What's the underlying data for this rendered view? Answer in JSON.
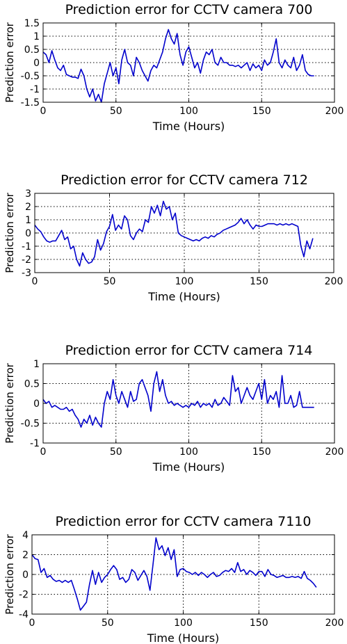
{
  "chart_data": [
    {
      "type": "line",
      "title": "Prediction error for CCTV camera 700",
      "xlabel": "Time (Hours)",
      "ylabel": "Prediction error",
      "xlim": [
        0,
        200
      ],
      "ylim": [
        -1.5,
        1.5
      ],
      "xticks": [
        0,
        50,
        100,
        150,
        200
      ],
      "yticks": [
        -1.5,
        -1,
        -0.5,
        0,
        0.5,
        1,
        1.5
      ],
      "xtick_labels": [
        "0",
        "50",
        "100",
        "150",
        "200"
      ],
      "ytick_labels": [
        "-1.5",
        "-1",
        "-0.5",
        "0",
        "0.5",
        "1",
        "1.5"
      ],
      "grid": true,
      "color": "#0000cc",
      "series": [
        {
          "x": [
            0,
            2,
            4,
            6,
            8,
            10,
            12,
            14,
            16,
            18,
            20,
            22,
            24,
            26,
            28,
            30,
            32,
            34,
            36,
            38,
            40,
            42,
            44,
            46,
            48,
            50,
            52,
            54,
            56,
            58,
            60,
            62,
            64,
            66,
            68,
            70,
            72,
            74,
            76,
            78,
            80,
            82,
            84,
            86,
            88,
            90,
            92,
            94,
            96,
            98,
            100,
            102,
            104,
            106,
            108,
            110,
            112,
            114,
            116,
            118,
            120,
            122,
            124,
            126,
            128,
            130,
            132,
            134,
            136,
            138,
            140,
            142,
            144,
            146,
            148,
            150,
            152,
            154,
            156,
            158,
            160,
            162,
            164,
            166,
            168,
            170,
            172,
            174,
            176,
            178,
            180,
            182,
            184,
            186
          ],
          "y": [
            0.4,
            0.3,
            0.0,
            0.45,
            0.1,
            -0.2,
            -0.3,
            -0.1,
            -0.45,
            -0.5,
            -0.55,
            -0.55,
            -0.6,
            -0.25,
            -0.5,
            -1.0,
            -1.3,
            -1.0,
            -1.45,
            -1.2,
            -1.5,
            -0.8,
            -0.4,
            0.0,
            -0.5,
            -0.2,
            -0.8,
            0.1,
            0.5,
            0.0,
            -0.1,
            -0.5,
            0.2,
            0.0,
            -0.3,
            -0.5,
            -0.7,
            -0.3,
            -0.1,
            -0.2,
            0.1,
            0.4,
            0.9,
            1.25,
            0.9,
            0.7,
            1.1,
            0.3,
            -0.1,
            0.4,
            0.6,
            0.2,
            -0.2,
            0.0,
            -0.4,
            0.1,
            0.4,
            0.3,
            0.5,
            0.0,
            -0.1,
            0.2,
            0.0,
            0.0,
            -0.1,
            -0.1,
            -0.15,
            -0.1,
            -0.2,
            -0.1,
            0.0,
            -0.3,
            -0.05,
            -0.2,
            -0.1,
            -0.3,
            0.1,
            -0.1,
            0.0,
            0.4,
            0.9,
            0.0,
            -0.2,
            0.1,
            -0.1,
            -0.2,
            0.2,
            -0.3,
            -0.1,
            0.3,
            -0.3,
            -0.45,
            -0.5,
            -0.5
          ]
        }
      ]
    },
    {
      "type": "line",
      "title": "Prediction error for CCTV camera 712",
      "xlabel": "Time (Hours)",
      "ylabel": "Prediction error",
      "xlim": [
        0,
        200
      ],
      "ylim": [
        -3,
        3
      ],
      "xticks": [
        0,
        50,
        100,
        150,
        200
      ],
      "yticks": [
        -3,
        -2,
        -1,
        0,
        1,
        2,
        3
      ],
      "xtick_labels": [
        "0",
        "50",
        "100",
        "150",
        "200"
      ],
      "ytick_labels": [
        "-3",
        "-2",
        "-1",
        "0",
        "1",
        "2",
        "3"
      ],
      "grid": true,
      "color": "#0000cc",
      "series": [
        {
          "x": [
            0,
            2,
            4,
            6,
            8,
            10,
            12,
            14,
            16,
            18,
            20,
            22,
            24,
            26,
            28,
            30,
            32,
            34,
            36,
            38,
            40,
            42,
            44,
            46,
            48,
            50,
            52,
            54,
            56,
            58,
            60,
            62,
            64,
            66,
            68,
            70,
            72,
            74,
            76,
            78,
            80,
            82,
            84,
            86,
            88,
            90,
            92,
            94,
            96,
            98,
            100,
            102,
            104,
            106,
            108,
            110,
            112,
            114,
            116,
            118,
            120,
            122,
            124,
            126,
            128,
            130,
            132,
            134,
            136,
            138,
            140,
            142,
            144,
            146,
            148,
            150,
            152,
            154,
            156,
            158,
            160,
            162,
            164,
            166,
            168,
            170,
            172,
            174,
            176,
            178,
            180,
            182,
            184,
            186
          ],
          "y": [
            0.6,
            0.3,
            0.1,
            -0.3,
            -0.6,
            -0.7,
            -0.6,
            -0.6,
            -0.2,
            0.2,
            -0.5,
            -0.3,
            -1.2,
            -1.0,
            -2.0,
            -2.5,
            -1.5,
            -2.0,
            -2.3,
            -2.2,
            -1.8,
            -0.5,
            -1.3,
            -0.8,
            0.1,
            0.5,
            1.4,
            0.2,
            0.6,
            0.3,
            1.3,
            1.0,
            -0.2,
            -0.5,
            0.0,
            0.3,
            0.1,
            1.0,
            0.8,
            2.0,
            1.5,
            2.1,
            1.3,
            2.4,
            1.8,
            2.0,
            1.0,
            1.5,
            0.0,
            -0.2,
            -0.3,
            -0.4,
            -0.5,
            -0.6,
            -0.5,
            -0.6,
            -0.4,
            -0.3,
            -0.4,
            -0.2,
            -0.3,
            -0.1,
            0.0,
            0.2,
            0.3,
            0.4,
            0.5,
            0.6,
            0.8,
            1.1,
            0.7,
            1.0,
            0.6,
            0.3,
            0.6,
            0.5,
            0.5,
            0.6,
            0.7,
            0.7,
            0.7,
            0.6,
            0.7,
            0.6,
            0.7,
            0.6,
            0.7,
            0.6,
            0.5,
            -1.0,
            -1.8,
            -0.6,
            -1.2,
            -0.4
          ]
        }
      ]
    },
    {
      "type": "line",
      "title": "Prediction error for CCTV camera 714",
      "xlabel": "Time (Hours)",
      "ylabel": "Prediction error",
      "xlim": [
        0,
        200
      ],
      "ylim": [
        -1,
        1
      ],
      "xticks": [
        0,
        50,
        100,
        150,
        200
      ],
      "yticks": [
        -1,
        -0.5,
        0,
        0.5,
        1
      ],
      "xtick_labels": [
        "0",
        "50",
        "100",
        "150",
        "200"
      ],
      "ytick_labels": [
        "-1",
        "-0.5",
        "0",
        "0.5",
        "1"
      ],
      "grid": true,
      "color": "#0000cc",
      "series": [
        {
          "x": [
            0,
            2,
            4,
            6,
            8,
            10,
            12,
            14,
            16,
            18,
            20,
            22,
            24,
            26,
            28,
            30,
            32,
            34,
            36,
            38,
            40,
            42,
            44,
            46,
            48,
            50,
            52,
            54,
            56,
            58,
            60,
            62,
            64,
            66,
            68,
            70,
            72,
            74,
            76,
            78,
            80,
            82,
            84,
            86,
            88,
            90,
            92,
            94,
            96,
            98,
            100,
            102,
            104,
            106,
            108,
            110,
            112,
            114,
            116,
            118,
            120,
            122,
            124,
            126,
            128,
            130,
            132,
            134,
            136,
            138,
            140,
            142,
            144,
            146,
            148,
            150,
            152,
            154,
            156,
            158,
            160,
            162,
            164,
            166,
            168,
            170,
            172,
            174,
            176,
            178,
            180,
            182,
            184,
            186
          ],
          "y": [
            0.1,
            0.0,
            0.05,
            -0.1,
            -0.05,
            -0.1,
            -0.15,
            -0.15,
            -0.1,
            -0.2,
            -0.15,
            -0.3,
            -0.4,
            -0.6,
            -0.4,
            -0.5,
            -0.3,
            -0.55,
            -0.35,
            -0.5,
            -0.6,
            0.0,
            0.3,
            0.1,
            0.6,
            0.2,
            0.0,
            0.3,
            0.1,
            -0.1,
            0.3,
            0.05,
            0.1,
            0.5,
            0.6,
            0.4,
            0.2,
            -0.2,
            0.5,
            0.8,
            0.3,
            0.6,
            0.2,
            0.0,
            0.05,
            -0.05,
            0.0,
            -0.05,
            -0.1,
            -0.05,
            -0.1,
            0.0,
            -0.05,
            0.05,
            -0.1,
            0.0,
            -0.05,
            0.0,
            -0.1,
            0.1,
            -0.05,
            0.0,
            0.15,
            0.05,
            -0.05,
            0.7,
            0.3,
            0.4,
            0.0,
            0.2,
            0.4,
            0.2,
            0.1,
            0.3,
            0.5,
            0.1,
            0.6,
            0.0,
            0.2,
            0.1,
            0.3,
            -0.1,
            0.7,
            0.0,
            0.0,
            0.2,
            -0.1,
            -0.05,
            0.3,
            -0.1,
            -0.1,
            -0.1,
            -0.1,
            -0.1
          ]
        }
      ]
    },
    {
      "type": "line",
      "title": "Prediction error for CCTV camera 7110",
      "xlabel": "Time (Hours)",
      "ylabel": "Prediction error",
      "xlim": [
        0,
        200
      ],
      "ylim": [
        -4,
        4
      ],
      "xticks": [
        0,
        50,
        100,
        150,
        200
      ],
      "yticks": [
        -4,
        -2,
        0,
        2,
        4
      ],
      "xtick_labels": [
        "0",
        "50",
        "100",
        "150",
        "200"
      ],
      "ytick_labels": [
        "-4",
        "-2",
        "0",
        "2",
        "4"
      ],
      "grid": true,
      "color": "#0000cc",
      "series": [
        {
          "x": [
            0,
            2,
            4,
            6,
            8,
            10,
            12,
            14,
            16,
            18,
            20,
            22,
            24,
            26,
            28,
            30,
            32,
            34,
            36,
            38,
            40,
            42,
            44,
            46,
            48,
            50,
            52,
            54,
            56,
            58,
            60,
            62,
            64,
            66,
            68,
            70,
            72,
            74,
            76,
            78,
            80,
            82,
            84,
            86,
            88,
            90,
            92,
            94,
            96,
            98,
            100,
            102,
            104,
            106,
            108,
            110,
            112,
            114,
            116,
            118,
            120,
            122,
            124,
            126,
            128,
            130,
            132,
            134,
            136,
            138,
            140,
            142,
            144,
            146,
            148,
            150,
            152,
            154,
            156,
            158,
            160,
            162,
            164,
            166,
            168,
            170,
            172,
            174,
            176,
            178,
            180,
            182,
            184,
            186,
            188
          ],
          "y": [
            2.0,
            1.6,
            1.5,
            0.2,
            0.6,
            -0.3,
            -0.1,
            -0.5,
            -0.7,
            -0.6,
            -0.8,
            -0.6,
            -0.8,
            -0.6,
            -1.5,
            -2.5,
            -3.6,
            -3.2,
            -2.8,
            -1.0,
            0.4,
            -1.0,
            0.2,
            -0.8,
            -0.3,
            0.0,
            0.5,
            0.9,
            0.5,
            -0.5,
            -0.3,
            -0.8,
            -0.5,
            0.5,
            0.2,
            -0.6,
            -0.1,
            0.4,
            -0.2,
            -1.6,
            1.0,
            3.7,
            2.5,
            2.9,
            1.9,
            2.7,
            1.5,
            2.5,
            -0.2,
            0.5,
            0.6,
            0.3,
            0.2,
            0.0,
            0.2,
            -0.1,
            0.2,
            0.0,
            -0.3,
            0.0,
            0.2,
            -0.2,
            -0.1,
            0.2,
            0.4,
            0.3,
            0.6,
            0.2,
            1.2,
            0.3,
            0.5,
            0.0,
            0.4,
            0.2,
            -0.1,
            0.3,
            0.3,
            -0.2,
            0.5,
            0.0,
            -0.1,
            -0.3,
            -0.2,
            -0.1,
            -0.3,
            -0.3,
            -0.2,
            -0.3,
            -0.2,
            -0.4,
            0.3,
            -0.4,
            -0.6,
            -0.9,
            -1.3
          ]
        }
      ]
    }
  ]
}
